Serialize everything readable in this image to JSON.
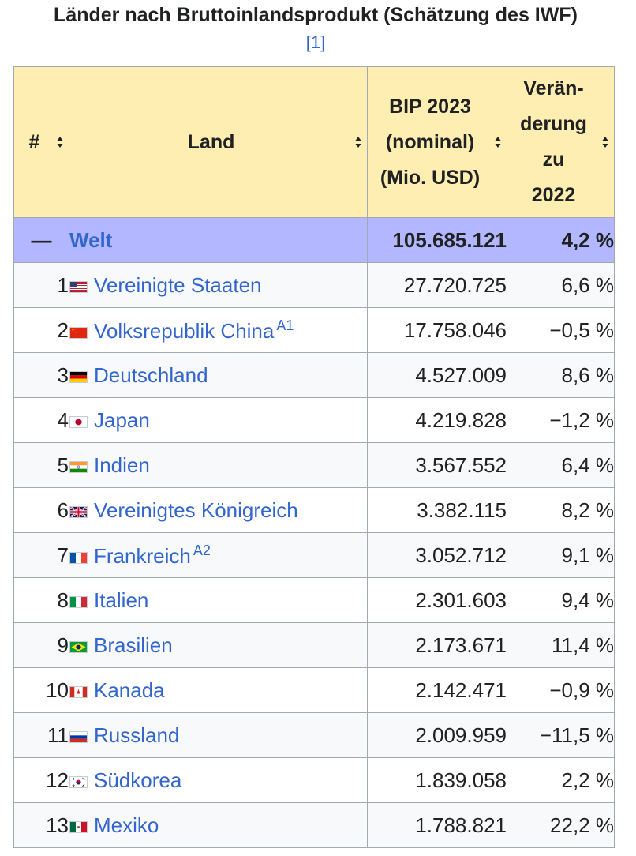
{
  "caption": "Länder nach Bruttoinlandsprodukt (Schätzung des IWF)",
  "caption_ref": "[1]",
  "colors": {
    "link": "#3366cc",
    "header_bg": "#feeeb2",
    "world_bg": "#b3b7ff",
    "border": "#a2a9b1"
  },
  "table": {
    "headers": {
      "rank": "#",
      "country": "Land",
      "gdp": [
        "BIP 2023",
        "(nominal)",
        "(Mio. USD)"
      ],
      "change": [
        "Verän-",
        "derung",
        "zu",
        "2022"
      ]
    },
    "world": {
      "rank": "—",
      "country": "Welt",
      "gdp": "105.685.121",
      "change": "4,2 %"
    },
    "rows": [
      {
        "rank": "1",
        "flag": "us-flag-icon",
        "country": "Vereinigte Staaten",
        "note": "",
        "gdp": "27.720.725",
        "change": "6,6 %"
      },
      {
        "rank": "2",
        "flag": "cn-flag-icon",
        "country": "Volksrepublik China",
        "note": "A1",
        "gdp": "17.758.046",
        "change": "−0,5 %"
      },
      {
        "rank": "3",
        "flag": "de-flag-icon",
        "country": "Deutschland",
        "note": "",
        "gdp": "4.527.009",
        "change": "8,6 %"
      },
      {
        "rank": "4",
        "flag": "jp-flag-icon",
        "country": "Japan",
        "note": "",
        "gdp": "4.219.828",
        "change": "−1,2 %"
      },
      {
        "rank": "5",
        "flag": "in-flag-icon",
        "country": "Indien",
        "note": "",
        "gdp": "3.567.552",
        "change": "6,4 %"
      },
      {
        "rank": "6",
        "flag": "gb-flag-icon",
        "country": "Vereinigtes Königreich",
        "note": "",
        "gdp": "3.382.115",
        "change": "8,2 %"
      },
      {
        "rank": "7",
        "flag": "fr-flag-icon",
        "country": "Frankreich",
        "note": "A2",
        "gdp": "3.052.712",
        "change": "9,1 %"
      },
      {
        "rank": "8",
        "flag": "it-flag-icon",
        "country": "Italien",
        "note": "",
        "gdp": "2.301.603",
        "change": "9,4 %"
      },
      {
        "rank": "9",
        "flag": "br-flag-icon",
        "country": "Brasilien",
        "note": "",
        "gdp": "2.173.671",
        "change": "11,4 %"
      },
      {
        "rank": "10",
        "flag": "ca-flag-icon",
        "country": "Kanada",
        "note": "",
        "gdp": "2.142.471",
        "change": "−0,9 %"
      },
      {
        "rank": "11",
        "flag": "ru-flag-icon",
        "country": "Russland",
        "note": "",
        "gdp": "2.009.959",
        "change": "−11,5 %"
      },
      {
        "rank": "12",
        "flag": "kr-flag-icon",
        "country": "Südkorea",
        "note": "",
        "gdp": "1.839.058",
        "change": "2,2 %"
      },
      {
        "rank": "13",
        "flag": "mx-flag-icon",
        "country": "Mexiko",
        "note": "",
        "gdp": "1.788.821",
        "change": "22,2 %"
      }
    ]
  }
}
